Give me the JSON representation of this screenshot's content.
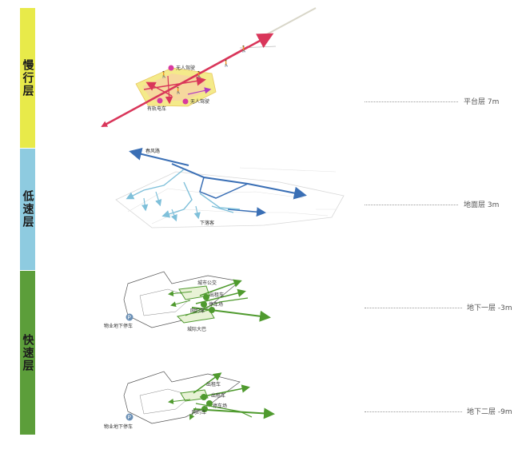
{
  "bands": {
    "slow": {
      "label": "慢行层",
      "color": "#e8ea4a"
    },
    "low": {
      "label": "低速层",
      "color": "#8ecbe0"
    },
    "fast": {
      "label": "快速层",
      "color": "#5c9e3a"
    }
  },
  "levels": [
    {
      "label": "平台层  7m"
    },
    {
      "label": "地面层  3m"
    },
    {
      "label": "地下一层  -3m"
    },
    {
      "label": "地下二层  -9m"
    }
  ],
  "platform": {
    "uav1": "无人驾驶",
    "uav2": "无人驾驶",
    "shared_car": "有轨电车"
  },
  "ground": {
    "top_label": "春风路",
    "bottom_label": "下落客"
  },
  "b1": {
    "bus": "城市公交",
    "taxi": "出租车",
    "parking": "停车场",
    "ride_hail": "网约车",
    "shuttle": "城际大巴",
    "property_parking": "物业地下停车",
    "p_glyph": "P"
  },
  "b2": {
    "taxi1": "出租车",
    "taxi2": "出租车",
    "parking": "停车场",
    "ride_hail": "网约车",
    "property_parking": "物业地下停车",
    "p_glyph": "P"
  },
  "colors": {
    "red": "#d9365a",
    "blue": "#3a6fb5",
    "lightblue": "#7fc0da",
    "green": "#4f9a2e",
    "purple": "#b23fbf"
  }
}
